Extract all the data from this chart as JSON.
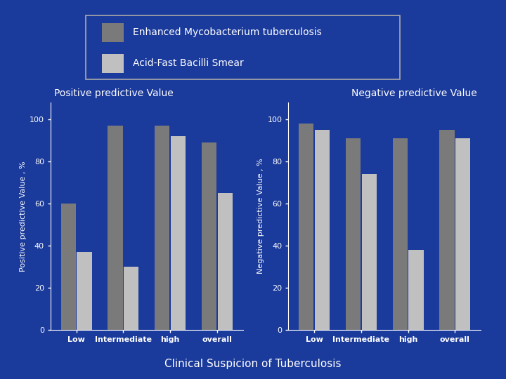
{
  "background_color": "#1a3a9c",
  "legend_border_color": "#aaaaaa",
  "bar_color_dark": "#7a7a7a",
  "bar_color_light": "#c0c0c0",
  "legend_labels": [
    "Enhanced Mycobacterium tuberculosis",
    "Acid-Fast Bacilli Smear"
  ],
  "categories": [
    "Low",
    "Intermediate",
    "high",
    "overall"
  ],
  "ppv_dark": [
    60,
    97,
    97,
    89
  ],
  "ppv_light": [
    37,
    30,
    92,
    65
  ],
  "npv_dark": [
    98,
    91,
    91,
    95
  ],
  "npv_light": [
    95,
    74,
    38,
    91
  ],
  "ppv_title": "Positive predictive Value",
  "npv_title": "Negative predictive Value",
  "ppv_ylabel": "Positive predictive Value , %",
  "npv_ylabel": "Negative predictive Value , %",
  "xlabel": "Clinical Suspicion of Tuberculosis",
  "ylim": [
    0,
    108
  ],
  "yticks": [
    0,
    20,
    40,
    60,
    80,
    100
  ],
  "title_fontsize": 10,
  "label_fontsize": 8,
  "tick_fontsize": 8,
  "legend_fontsize": 10,
  "xlabel_fontsize": 11,
  "text_color": "white",
  "axis_color": "white",
  "bar_width": 0.32
}
